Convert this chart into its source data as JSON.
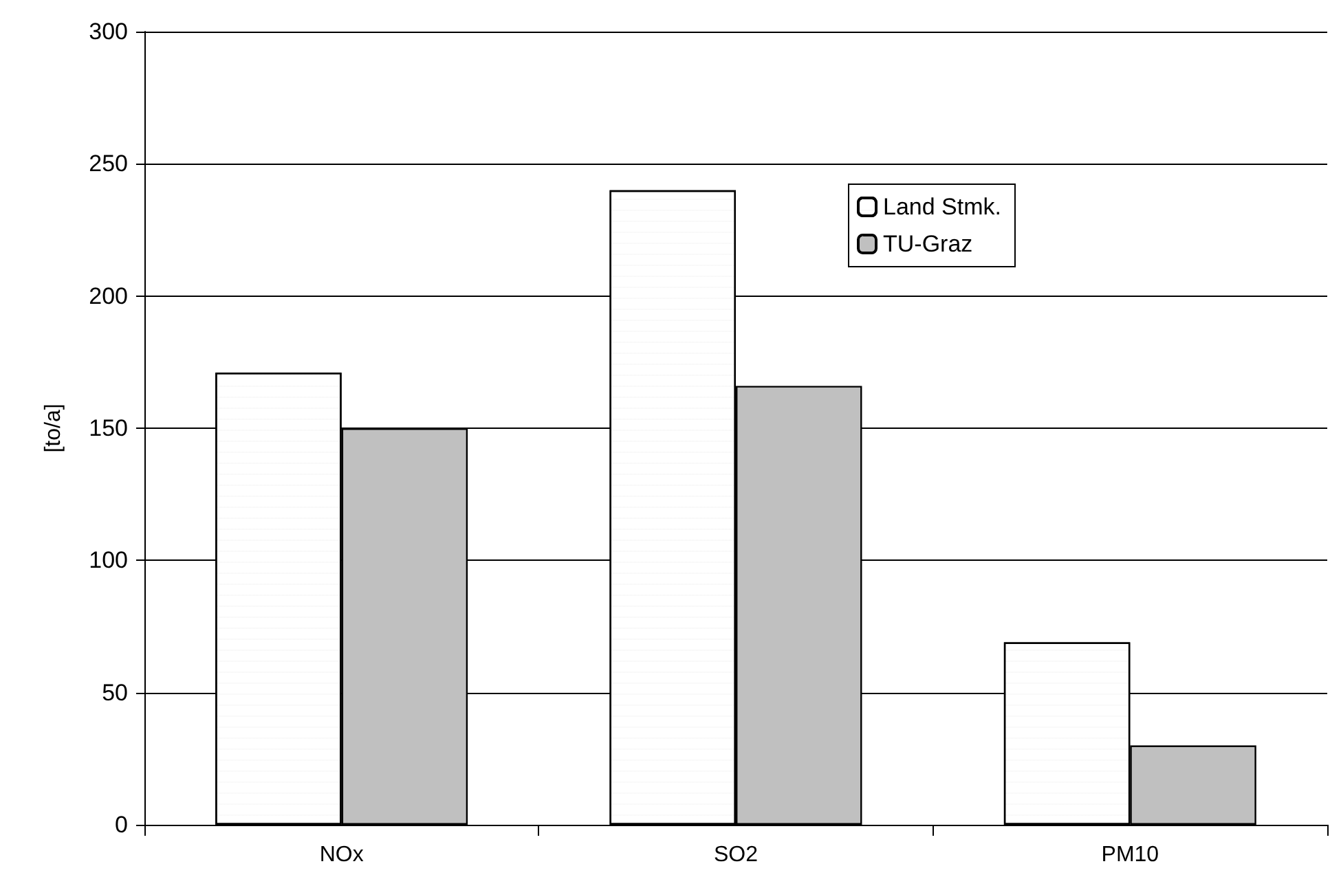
{
  "chart_data": {
    "type": "bar",
    "ylabel": "[to/a]",
    "categories": [
      "NOx",
      "SO2",
      "PM10"
    ],
    "series": [
      {
        "name": "Land Stmk.",
        "color": "#ffffff",
        "values": [
          171,
          240,
          69
        ]
      },
      {
        "name": "TU-Graz",
        "color": "#c0c0c0",
        "values": [
          150,
          166,
          30
        ]
      }
    ],
    "ylim": [
      0,
      300
    ],
    "yticks": [
      0,
      50,
      100,
      150,
      200,
      250,
      300
    ],
    "grid": "y",
    "legend": "top right"
  }
}
